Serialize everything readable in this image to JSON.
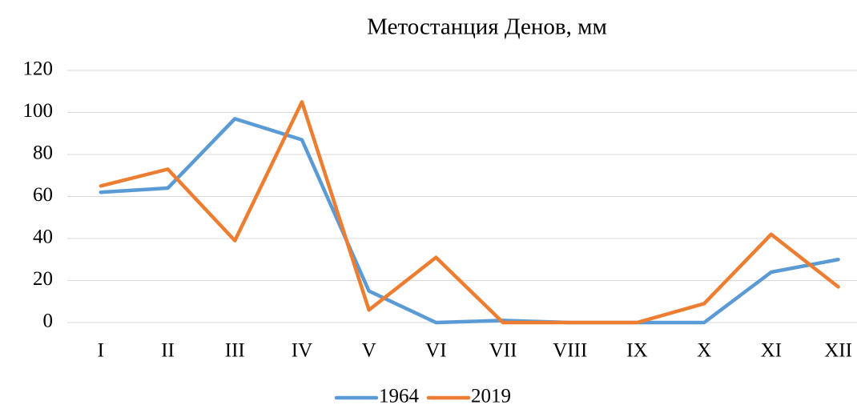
{
  "chart_data": {
    "type": "line",
    "title": "Метостанция Денов, мм",
    "categories": [
      "I",
      "II",
      "III",
      "IV",
      "V",
      "VI",
      "VII",
      "VIII",
      "IX",
      "X",
      "XI",
      "XII"
    ],
    "series": [
      {
        "name": "1964",
        "color": "#5b9bd5",
        "values": [
          62,
          64,
          97,
          87,
          15,
          0,
          1,
          0,
          0,
          0,
          24,
          30
        ]
      },
      {
        "name": "2019",
        "color": "#ed7d31",
        "values": [
          65,
          73,
          39,
          105,
          6,
          31,
          0,
          0,
          0,
          9,
          42,
          17
        ]
      }
    ],
    "ylim": [
      0,
      120
    ],
    "yticks": [
      0,
      20,
      40,
      60,
      80,
      100,
      120
    ],
    "grid": true,
    "legend": "bottom"
  }
}
